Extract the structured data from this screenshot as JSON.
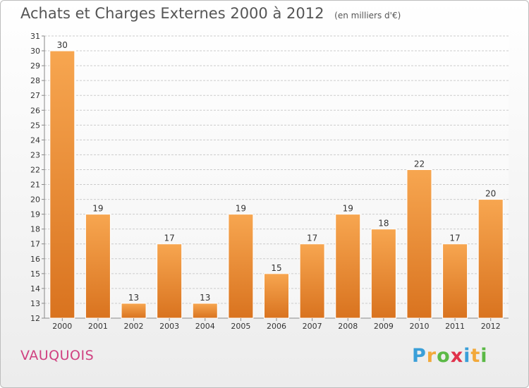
{
  "chart_data": {
    "type": "bar",
    "title": "Achats et Charges Externes 2000 à 2012",
    "subtitle": "(en milliers d'€)",
    "categories": [
      "2000",
      "2001",
      "2002",
      "2003",
      "2004",
      "2005",
      "2006",
      "2007",
      "2008",
      "2009",
      "2010",
      "2011",
      "2012"
    ],
    "values": [
      30,
      19,
      13,
      17,
      13,
      19,
      15,
      17,
      19,
      18,
      22,
      17,
      20
    ],
    "ylim": [
      12,
      31
    ],
    "yticks": [
      12,
      13,
      14,
      15,
      16,
      17,
      18,
      19,
      20,
      21,
      22,
      23,
      24,
      25,
      26,
      27,
      28,
      29,
      30,
      31
    ],
    "grid": true,
    "xlabel": "",
    "ylabel": "",
    "colors": {
      "bar_light": "#f7a650",
      "bar_dark": "#d9731f",
      "grid": "#cccccc"
    }
  },
  "commune": "VAUQUOIS",
  "logo": {
    "letters": [
      "P",
      "r",
      "o",
      "x",
      "i",
      "t",
      "i"
    ],
    "colors": [
      "#3a9fd8",
      "#f2a93b",
      "#5bb946",
      "#e0324b",
      "#3a9fd8",
      "#f2a93b",
      "#5bb946"
    ]
  }
}
